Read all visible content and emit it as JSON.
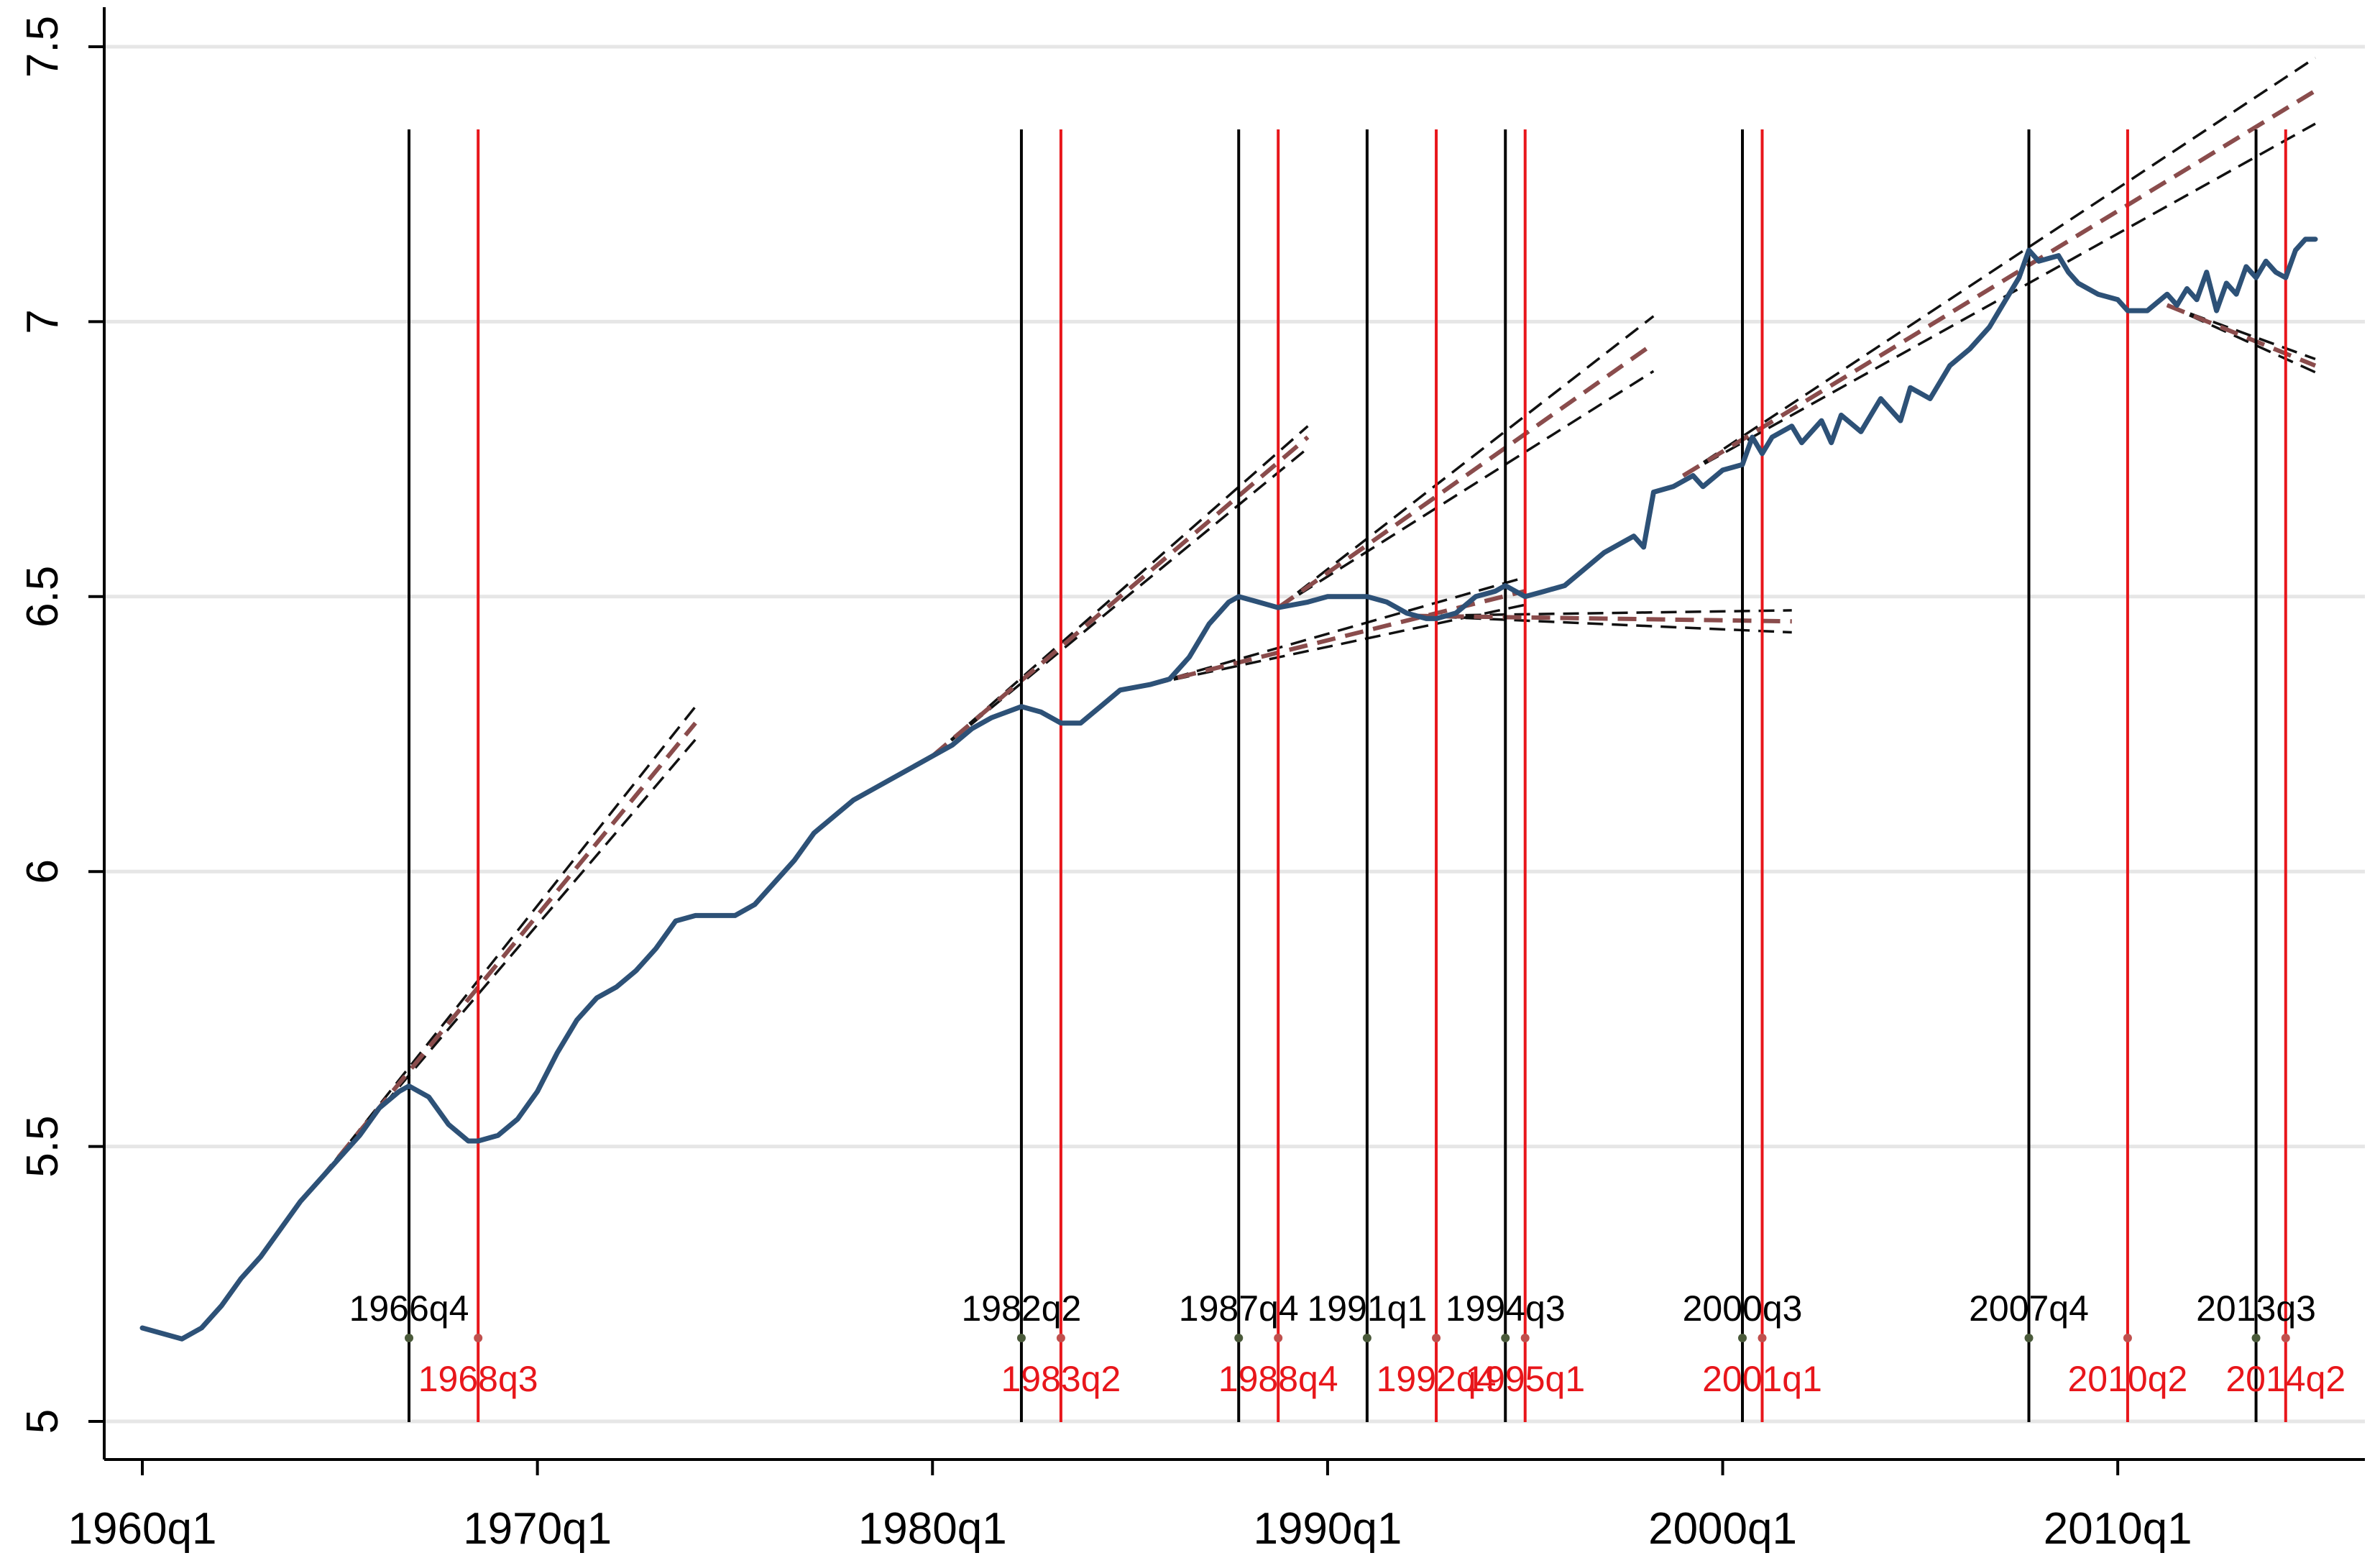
{
  "chart_data": {
    "type": "line",
    "title": "",
    "xlabel": "",
    "ylabel": "",
    "xlim": [
      1959.5,
      2015.25
    ],
    "ylim": [
      4.96,
      7.54
    ],
    "grid": true,
    "y_ticks": [
      5,
      5.5,
      6,
      6.5,
      7,
      7.5
    ],
    "y_tick_labels": [
      "5",
      "5.5",
      "6",
      "6.5",
      "7",
      "7.5"
    ],
    "x_ticks": [
      {
        "value": 1960,
        "label": "1960q1"
      },
      {
        "value": 1970,
        "label": "1970q1"
      },
      {
        "value": 1980,
        "label": "1980q1"
      },
      {
        "value": 1990,
        "label": "1990q1"
      },
      {
        "value": 2000,
        "label": "2000q1"
      },
      {
        "value": 2010,
        "label": "2010q1"
      }
    ],
    "colors": {
      "series": "#2d5177",
      "peak": "#000000",
      "trough": "#e8161b",
      "trend_mid": "#8a4c4c",
      "trend_band": "#111111",
      "grid": "#e6e6e6"
    },
    "series": [
      {
        "points": [
          [
            1960.0,
            5.17
          ],
          [
            1960.5,
            5.16
          ],
          [
            1961.0,
            5.15
          ],
          [
            1961.5,
            5.17
          ],
          [
            1962.0,
            5.21
          ],
          [
            1962.5,
            5.26
          ],
          [
            1963.0,
            5.3
          ],
          [
            1963.5,
            5.35
          ],
          [
            1964.0,
            5.4
          ],
          [
            1964.5,
            5.44
          ],
          [
            1965.0,
            5.48
          ],
          [
            1965.5,
            5.52
          ],
          [
            1966.0,
            5.57
          ],
          [
            1966.5,
            5.6
          ],
          [
            1966.75,
            5.61
          ],
          [
            1967.25,
            5.59
          ],
          [
            1967.75,
            5.54
          ],
          [
            1968.25,
            5.51
          ],
          [
            1968.5,
            5.51
          ],
          [
            1969.0,
            5.52
          ],
          [
            1969.5,
            5.55
          ],
          [
            1970.0,
            5.6
          ],
          [
            1970.5,
            5.67
          ],
          [
            1971.0,
            5.73
          ],
          [
            1971.5,
            5.77
          ],
          [
            1972.0,
            5.79
          ],
          [
            1972.5,
            5.82
          ],
          [
            1973.0,
            5.86
          ],
          [
            1973.5,
            5.91
          ],
          [
            1974.0,
            5.92
          ],
          [
            1974.5,
            5.92
          ],
          [
            1975.0,
            5.92
          ],
          [
            1975.5,
            5.94
          ],
          [
            1976.0,
            5.98
          ],
          [
            1976.5,
            6.02
          ],
          [
            1977.0,
            6.07
          ],
          [
            1977.5,
            6.1
          ],
          [
            1978.0,
            6.13
          ],
          [
            1978.5,
            6.15
          ],
          [
            1979.0,
            6.17
          ],
          [
            1979.5,
            6.19
          ],
          [
            1980.0,
            6.21
          ],
          [
            1980.5,
            6.23
          ],
          [
            1981.0,
            6.26
          ],
          [
            1981.5,
            6.28
          ],
          [
            1982.25,
            6.3
          ],
          [
            1982.75,
            6.29
          ],
          [
            1983.25,
            6.27
          ],
          [
            1983.75,
            6.27
          ],
          [
            1984.25,
            6.3
          ],
          [
            1984.75,
            6.33
          ],
          [
            1985.5,
            6.34
          ],
          [
            1986.0,
            6.35
          ],
          [
            1986.5,
            6.39
          ],
          [
            1987.0,
            6.45
          ],
          [
            1987.5,
            6.49
          ],
          [
            1987.75,
            6.5
          ],
          [
            1988.25,
            6.49
          ],
          [
            1988.75,
            6.48
          ],
          [
            1989.5,
            6.49
          ],
          [
            1990.0,
            6.5
          ],
          [
            1990.5,
            6.5
          ],
          [
            1991.0,
            6.5
          ],
          [
            1991.5,
            6.49
          ],
          [
            1992.0,
            6.47
          ],
          [
            1992.5,
            6.46
          ],
          [
            1992.75,
            6.46
          ],
          [
            1993.25,
            6.47
          ],
          [
            1993.75,
            6.5
          ],
          [
            1994.25,
            6.51
          ],
          [
            1994.5,
            6.52
          ],
          [
            1994.75,
            6.51
          ],
          [
            1995.0,
            6.5
          ],
          [
            1995.5,
            6.51
          ],
          [
            1996.0,
            6.52
          ],
          [
            1996.5,
            6.55
          ],
          [
            1997.0,
            6.58
          ],
          [
            1997.5,
            6.6
          ],
          [
            1997.75,
            6.61
          ],
          [
            1998.0,
            6.59
          ],
          [
            1998.25,
            6.69
          ],
          [
            1998.75,
            6.7
          ],
          [
            1999.25,
            6.72
          ],
          [
            1999.5,
            6.7
          ],
          [
            2000.0,
            6.73
          ],
          [
            2000.5,
            6.74
          ],
          [
            2000.75,
            6.79
          ],
          [
            2001.0,
            6.76
          ],
          [
            2001.25,
            6.79
          ],
          [
            2001.75,
            6.81
          ],
          [
            2002.0,
            6.78
          ],
          [
            2002.5,
            6.82
          ],
          [
            2002.75,
            6.78
          ],
          [
            2003.0,
            6.83
          ],
          [
            2003.5,
            6.8
          ],
          [
            2004.0,
            6.86
          ],
          [
            2004.5,
            6.82
          ],
          [
            2004.75,
            6.88
          ],
          [
            2005.25,
            6.86
          ],
          [
            2005.75,
            6.92
          ],
          [
            2006.25,
            6.95
          ],
          [
            2006.75,
            6.99
          ],
          [
            2007.0,
            7.02
          ],
          [
            2007.5,
            7.08
          ],
          [
            2007.75,
            7.13
          ],
          [
            2008.0,
            7.11
          ],
          [
            2008.5,
            7.12
          ],
          [
            2008.75,
            7.09
          ],
          [
            2009.0,
            7.07
          ],
          [
            2009.5,
            7.05
          ],
          [
            2010.0,
            7.04
          ],
          [
            2010.25,
            7.02
          ],
          [
            2010.75,
            7.02
          ],
          [
            2011.25,
            7.05
          ],
          [
            2011.5,
            7.03
          ],
          [
            2011.75,
            7.06
          ],
          [
            2012.0,
            7.04
          ],
          [
            2012.25,
            7.09
          ],
          [
            2012.5,
            7.02
          ],
          [
            2012.75,
            7.07
          ],
          [
            2013.0,
            7.05
          ],
          [
            2013.25,
            7.1
          ],
          [
            2013.5,
            7.08
          ],
          [
            2013.75,
            7.11
          ],
          [
            2014.0,
            7.09
          ],
          [
            2014.25,
            7.08
          ],
          [
            2014.5,
            7.13
          ],
          [
            2014.75,
            7.15
          ],
          [
            2015.0,
            7.15
          ]
        ]
      }
    ],
    "peaks": [
      {
        "label": "1966q4",
        "x": 1966.75
      },
      {
        "label": "1982q2",
        "x": 1982.25
      },
      {
        "label": "1987q4",
        "x": 1987.75
      },
      {
        "label": "1991q1",
        "x": 1991.0
      },
      {
        "label": "1994q3",
        "x": 1994.5
      },
      {
        "label": "2000q3",
        "x": 2000.5
      },
      {
        "label": "2007q4",
        "x": 2007.75
      },
      {
        "label": "2013q3",
        "x": 2013.5
      }
    ],
    "troughs": [
      {
        "label": "1968q3",
        "x": 1968.5
      },
      {
        "label": "1983q2",
        "x": 1983.25
      },
      {
        "label": "1988q4",
        "x": 1988.75
      },
      {
        "label": "1992q4",
        "x": 1992.75
      },
      {
        "label": "1995q1",
        "x": 1995.0
      },
      {
        "label": "2001q1",
        "x": 2001.0
      },
      {
        "label": "2010q2",
        "x": 2010.25
      },
      {
        "label": "2014q2",
        "x": 2014.25
      }
    ],
    "trend_lines": [
      {
        "x0": 1964.5,
        "y0": 5.44,
        "x1": 1974.0,
        "y1": 6.27,
        "band": 0.03
      },
      {
        "x0": 1980.0,
        "y0": 6.21,
        "x1": 1989.5,
        "y1": 6.79,
        "band": 0.02
      },
      {
        "x0": 1988.75,
        "y0": 6.48,
        "x1": 1998.25,
        "y1": 6.96,
        "band": 0.05
      },
      {
        "x0": 1985.5,
        "y0": 6.34,
        "x1": 1995.0,
        "y1": 6.51,
        "band": 0.025
      },
      {
        "x0": 1992.25,
        "y0": 6.465,
        "x1": 2001.75,
        "y1": 6.455,
        "band": 0.02
      },
      {
        "x0": 1999.0,
        "y0": 6.72,
        "x1": 2015.0,
        "y1": 7.42,
        "band": 0.06
      },
      {
        "x0": 2011.25,
        "y0": 7.03,
        "x1": 2015.0,
        "y1": 6.92,
        "band": 0.012
      }
    ]
  }
}
